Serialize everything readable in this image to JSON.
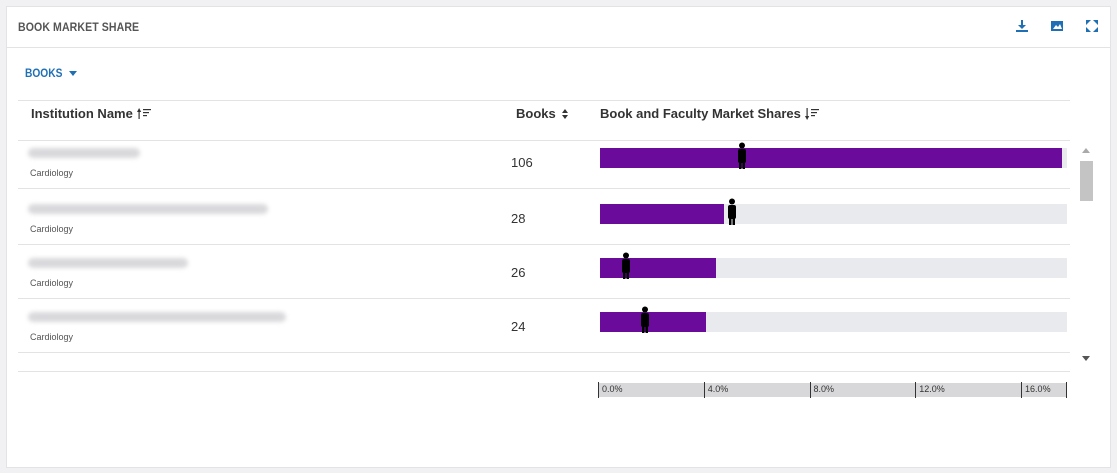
{
  "panel": {
    "title": "BOOK MARKET SHARE",
    "icons": [
      "download-icon",
      "image-icon",
      "expand-icon"
    ]
  },
  "dropdown": {
    "label": "BOOKS"
  },
  "columns": {
    "institution": "Institution Name",
    "books": "Books",
    "share": "Book and Faculty Market Shares"
  },
  "rows": [
    {
      "department": "Cardiology",
      "books": "106",
      "book_share_pct": 17.5,
      "faculty_share_pct": 5.4
    },
    {
      "department": "Cardiology",
      "books": "28",
      "book_share_pct": 4.7,
      "faculty_share_pct": 5.0
    },
    {
      "department": "Cardiology",
      "books": "26",
      "book_share_pct": 4.4,
      "faculty_share_pct": 1.0
    },
    {
      "department": "Cardiology",
      "books": "24",
      "book_share_pct": 4.0,
      "faculty_share_pct": 1.7
    }
  ],
  "axis": {
    "ticks": [
      "0.0%",
      "4.0%",
      "8.0%",
      "12.0%",
      "16.0%"
    ],
    "max_pct": 17.7
  },
  "colors": {
    "accent": "#1f6fb5",
    "bar": "#6a0b9c",
    "track": "#e8eaee"
  }
}
